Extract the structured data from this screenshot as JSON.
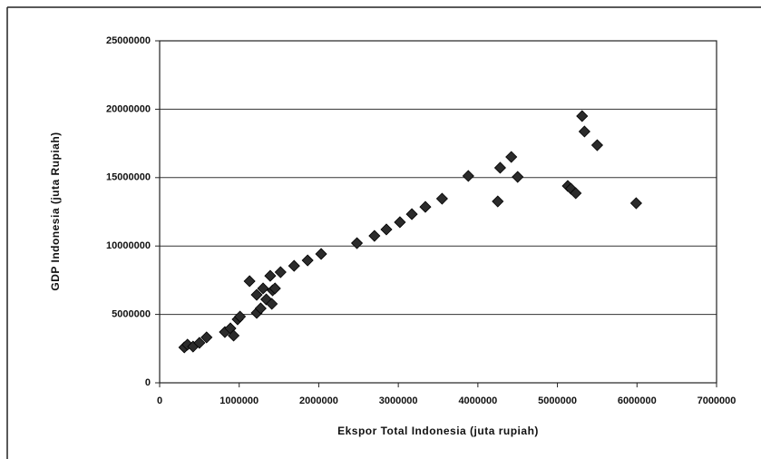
{
  "chart_data": {
    "type": "scatter",
    "x_label": "Ekspor Total Indonesia (juta rupiah)",
    "y_label": "GDP Indonesia (juta Rupiah)",
    "color": "#2b2b2b",
    "xlim": [
      0,
      7000000
    ],
    "xticks": [
      0,
      1000000,
      2000000,
      3000000,
      4000000,
      5000000,
      6000000,
      7000000
    ],
    "ylim": [
      0,
      25000000
    ],
    "yticks": [
      0,
      5000000,
      10000000,
      15000000,
      20000000,
      25000000
    ],
    "grid": true,
    "x": [
      310000,
      350000,
      420000,
      500000,
      590000,
      820000,
      890000,
      980000,
      1010000,
      930000,
      1130000,
      1220000,
      1270000,
      1220000,
      1300000,
      1340000,
      1410000,
      1420000,
      1450000,
      1390000,
      1520000,
      1690000,
      1860000,
      2030000,
      2480000,
      2700000,
      2850000,
      3020000,
      3170000,
      3340000,
      3550000,
      3880000,
      4250000,
      4280000,
      4420000,
      4500000,
      5130000,
      5170000,
      5230000,
      5310000,
      5340000,
      5500000,
      5990000
    ],
    "values": [
      2590000,
      2790000,
      2650000,
      2920000,
      3320000,
      3710000,
      3980000,
      4640000,
      4840000,
      3450000,
      7430000,
      5110000,
      5440000,
      6430000,
      6900000,
      6100000,
      5770000,
      6760000,
      6900000,
      7820000,
      8090000,
      8550000,
      8950000,
      9420000,
      10210000,
      10740000,
      11210000,
      11740000,
      12330000,
      12860000,
      13460000,
      15120000,
      13260000,
      15720000,
      16510000,
      15050000,
      14390000,
      14190000,
      13860000,
      19500000,
      18370000,
      17370000,
      13130000
    ]
  }
}
